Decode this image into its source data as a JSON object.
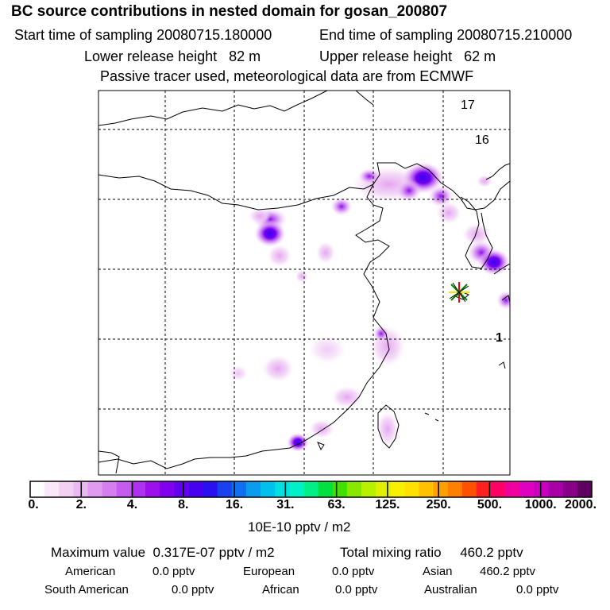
{
  "header": {
    "title": "BC  source contributions in nested domain for gosan_200807",
    "start_label": "Start time of sampling",
    "start_value": "20080715.180000",
    "end_label": "End time of sampling",
    "end_value": "20080715.210000",
    "lower_label": "Lower release height",
    "lower_value": "82 m",
    "upper_label": "Upper release height",
    "upper_value": "62 m",
    "note": "Passive tracer used, meteorological data are from ECMWF"
  },
  "chart_data": {
    "type": "heatmap",
    "title": "BC  source contributions in nested domain for gosan_200807",
    "colorbar": {
      "tick_labels": [
        "0.",
        "2.",
        "4.",
        "8.",
        "16.",
        "31.",
        "63.",
        "125.",
        "250.",
        "500.",
        "1000.",
        "2000."
      ],
      "colors": [
        "#ffffff",
        "#f8e8f8",
        "#f2d0f2",
        "#eab8f2",
        "#e09af0",
        "#d47ef0",
        "#c45cf0",
        "#b030f0",
        "#9c10ee",
        "#8000f0",
        "#6400f0",
        "#4800f0",
        "#2a10f0",
        "#1b40f0",
        "#1070f0",
        "#0b9cf0",
        "#00c0f0",
        "#00e0e0",
        "#00f0c8",
        "#00f088",
        "#00e040",
        "#40e000",
        "#88e800",
        "#b8f000",
        "#e0f000",
        "#f8f000",
        "#ffe000",
        "#ffc000",
        "#ffa000",
        "#ff8000",
        "#ff5000",
        "#ff2020",
        "#ff0066",
        "#f0009c",
        "#e000c0",
        "#c800c0",
        "#a800a8",
        "#880088",
        "#600060"
      ],
      "units": "10E-10 pptv / m2"
    },
    "map_labels": [
      "17",
      "16",
      "1"
    ],
    "receptor_marker": "gosan"
  },
  "summary": {
    "max_label": "Maximum value",
    "max_value": "0.317E-07 pptv / m2",
    "total_label": "Total mixing ratio",
    "total_value": "460.2 pptv",
    "american_label": "American",
    "american_value": "0.0 pptv",
    "european_label": "European",
    "european_value": "0.0 pptv",
    "asian_label": "Asian",
    "asian_value": "460.2 pptv",
    "south_american_label": "South American",
    "south_american_value": "0.0 pptv",
    "african_label": "African",
    "african_value": "0.0 pptv",
    "australian_label": "Australian",
    "australian_value": "0.0 pptv"
  },
  "colors": {
    "grid": "#000000",
    "coast": "#000000",
    "marker_red": "#ff0000",
    "marker_green": "#008000",
    "marker_yellow": "#e8e800"
  }
}
